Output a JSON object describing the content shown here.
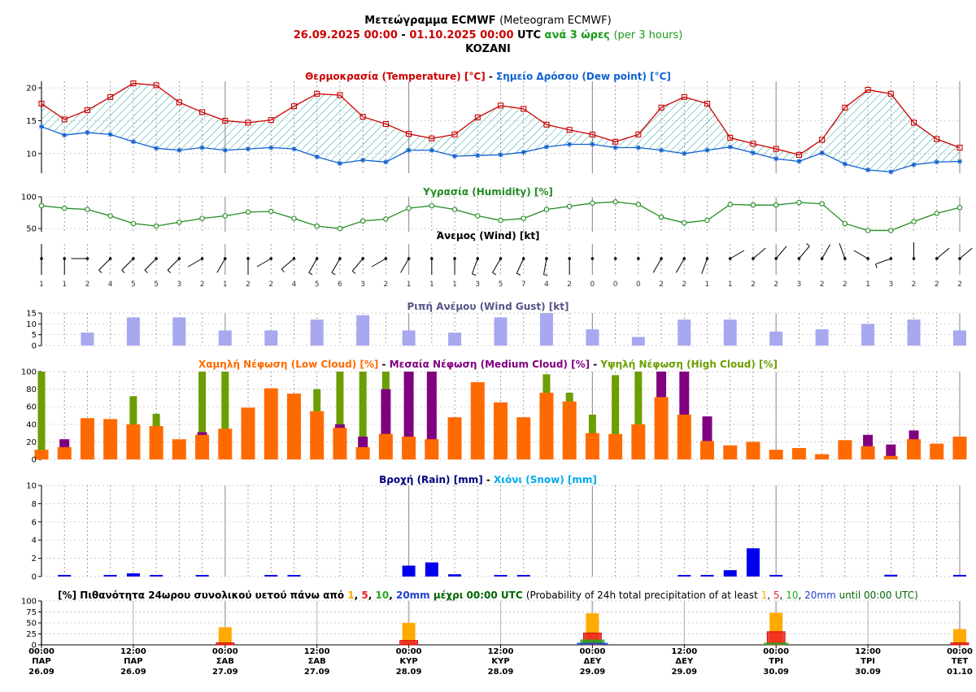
{
  "header": {
    "title_bold": "Μετεώγραμμα ECMWF",
    "title_normal": "(Meteogram ECMWF)",
    "period_start": "26.09.2025 00:00",
    "period_sep": " - ",
    "period_end": "01.10.2025 00:00",
    "period_utc": "UTC",
    "period_step_gr": "ανά 3 ώρες",
    "period_step_en": "(per 3 hours)",
    "location": "KOZANI"
  },
  "colors": {
    "temperature": "#cc0000",
    "dew_point": "#1060d0",
    "fill_hatch": "#20a0a0",
    "humidity": "#228b22",
    "gust": "#a8a8f0",
    "low_cloud": "#ff6a00",
    "medium_cloud": "#800080",
    "high_cloud": "#6b9e00",
    "rain": "#0000ee",
    "snow": "#00aaee",
    "p1": "#ffaa00",
    "p5": "#ee2020",
    "p10": "#22aa22",
    "p20": "#2040cc"
  },
  "chart_data": [
    {
      "type": "line",
      "title_parts": [
        {
          "text": "Θερμοκρασία (Temperature) [°C]",
          "color": "#cc0000"
        },
        {
          "text": " - ",
          "color": "#000000"
        },
        {
          "text": "Σημείο Δρόσου (Dew point) [°C]",
          "color": "#1060d0"
        }
      ],
      "yticks": [
        10,
        15,
        20
      ],
      "ylim": [
        7,
        21
      ],
      "series": [
        {
          "name": "Temperature",
          "values": [
            17.6,
            15.2,
            16.6,
            18.6,
            20.7,
            20.4,
            17.8,
            16.3,
            15.0,
            14.7,
            15.1,
            17.2,
            19.1,
            18.9,
            15.6,
            14.5,
            13.0,
            12.3,
            12.9,
            15.5,
            17.3,
            16.8,
            14.4,
            13.6,
            12.9,
            11.8,
            12.9,
            17.0,
            18.6,
            17.6,
            12.4,
            11.5,
            10.7,
            9.8,
            12.1,
            17.0,
            19.7,
            19.1,
            14.7,
            12.2,
            10.9
          ]
        },
        {
          "name": "Dew point",
          "values": [
            14.1,
            12.8,
            13.2,
            12.9,
            11.8,
            10.8,
            10.5,
            10.9,
            10.5,
            10.7,
            10.9,
            10.7,
            9.5,
            8.5,
            9.0,
            8.7,
            10.5,
            10.5,
            9.6,
            9.7,
            9.8,
            10.2,
            11.0,
            11.4,
            11.4,
            10.9,
            10.9,
            10.5,
            10.0,
            10.5,
            11.0,
            10.1,
            9.2,
            8.8,
            10.1,
            8.4,
            7.5,
            7.2,
            8.3,
            8.7,
            8.8
          ]
        }
      ]
    },
    {
      "type": "line",
      "title_parts": [
        {
          "text": "Υγρασία (Humidity) [%]",
          "color": "#228b22"
        }
      ],
      "yticks": [
        50,
        100
      ],
      "ylim": [
        45,
        100
      ],
      "series": [
        {
          "name": "Humidity",
          "values": [
            86,
            82,
            80,
            70,
            58,
            54,
            60,
            66,
            70,
            76,
            77,
            66,
            54,
            50,
            62,
            65,
            82,
            86,
            80,
            70,
            63,
            66,
            80,
            85,
            90,
            92,
            88,
            68,
            59,
            63,
            88,
            87,
            87,
            91,
            89,
            58,
            47,
            47,
            61,
            74,
            83
          ]
        }
      ]
    },
    {
      "type": "wind",
      "title_parts": [
        {
          "text": "Άνεμος (Wind) [kt]",
          "color": "#000000"
        }
      ],
      "speeds": [
        1,
        1,
        2,
        4,
        5,
        5,
        3,
        2,
        1,
        2,
        2,
        4,
        5,
        6,
        3,
        2,
        1,
        1,
        1,
        3,
        5,
        7,
        4,
        2,
        0,
        0,
        0,
        2,
        2,
        1,
        1,
        2,
        2,
        3,
        2,
        2,
        1,
        3,
        2,
        2,
        2
      ],
      "direction_deg": [
        0,
        0,
        270,
        315,
        315,
        315,
        315,
        300,
        330,
        0,
        300,
        310,
        330,
        330,
        320,
        300,
        330,
        0,
        0,
        340,
        330,
        335,
        350,
        0,
        0,
        0,
        0,
        330,
        330,
        340,
        120,
        130,
        140,
        140,
        150,
        200,
        240,
        290,
        180,
        130,
        130
      ]
    },
    {
      "type": "bar",
      "title_parts": [
        {
          "text": "Ριπή Ανέμου (Wind Gust) [kt]",
          "color": "#555588"
        }
      ],
      "yticks": [
        0,
        5,
        10,
        15
      ],
      "ylim": [
        0,
        15
      ],
      "x_index": [
        2,
        4,
        6,
        8,
        10,
        12,
        14,
        16,
        18,
        20,
        22,
        24,
        26,
        28,
        30,
        32,
        34,
        36,
        38,
        40
      ],
      "values": [
        6,
        13,
        13,
        7,
        7,
        12,
        14,
        7,
        6,
        13,
        15,
        7.5,
        4,
        12,
        12,
        6.5,
        7.5,
        10,
        12,
        7
      ]
    },
    {
      "type": "bar",
      "title_parts": [
        {
          "text": "Χαμηλή Νέφωση (Low Cloud) [%]",
          "color": "#ff6a00"
        },
        {
          "text": " - ",
          "color": "#000000"
        },
        {
          "text": "Μεσαία Νέφωση (Medium Cloud) [%]",
          "color": "#800080"
        },
        {
          "text": " - ",
          "color": "#000000"
        },
        {
          "text": "Υψηλή Νέφωση (High Cloud) [%]",
          "color": "#6b9e00"
        }
      ],
      "yticks": [
        0,
        20,
        40,
        60,
        80,
        100
      ],
      "ylim": [
        0,
        100
      ],
      "series": [
        {
          "name": "Low Cloud",
          "values": [
            11,
            14,
            47,
            46,
            40,
            38,
            23,
            28,
            35,
            59,
            81,
            75,
            55,
            36,
            14,
            29,
            26,
            23,
            48,
            88,
            65,
            48,
            76,
            66,
            30,
            29,
            40,
            71,
            51,
            21,
            16,
            20,
            11,
            13,
            6,
            22,
            15,
            4,
            23,
            18,
            26
          ]
        },
        {
          "name": "Medium Cloud",
          "values": [
            0,
            23,
            0,
            0,
            0,
            0,
            0,
            31,
            0,
            0,
            0,
            0,
            0,
            40,
            26,
            80,
            100,
            100,
            0,
            0,
            0,
            0,
            0,
            0,
            0,
            0,
            0,
            100,
            100,
            49,
            0,
            0,
            0,
            0,
            0,
            0,
            28,
            17,
            33,
            0,
            0
          ]
        },
        {
          "name": "High Cloud",
          "values": [
            100,
            0,
            0,
            0,
            72,
            52,
            0,
            100,
            100,
            0,
            0,
            0,
            80,
            100,
            100,
            100,
            0,
            0,
            0,
            0,
            0,
            0,
            97,
            76,
            51,
            96,
            100,
            0,
            0,
            0,
            0,
            0,
            0,
            0,
            0,
            0,
            0,
            0,
            0,
            0,
            0
          ]
        }
      ]
    },
    {
      "type": "bar",
      "title_parts": [
        {
          "text": "Βροχή (Rain) [mm]",
          "color": "#000080"
        },
        {
          "text": " - ",
          "color": "#000000"
        },
        {
          "text": "Χιόνι (Snow) [mm]",
          "color": "#00aaee"
        }
      ],
      "yticks": [
        0,
        2,
        4,
        6,
        8,
        10
      ],
      "ylim": [
        0,
        10
      ],
      "series": [
        {
          "name": "Rain",
          "values": [
            0,
            0.1,
            0,
            0.1,
            0.35,
            0.1,
            0,
            0.1,
            0,
            0,
            0.1,
            0.1,
            0,
            0,
            0,
            0,
            1.2,
            1.55,
            0.25,
            0,
            0.1,
            0.1,
            0,
            0,
            0,
            0,
            0,
            0,
            0.1,
            0.1,
            0.7,
            3.1,
            0.1,
            0,
            0,
            0,
            0,
            0.2,
            0,
            0,
            0.1
          ]
        },
        {
          "name": "Snow",
          "values": [
            0,
            0,
            0,
            0,
            0,
            0,
            0,
            0,
            0,
            0,
            0,
            0,
            0,
            0,
            0,
            0,
            0,
            0,
            0,
            0,
            0,
            0,
            0,
            0,
            0,
            0,
            0,
            0,
            0,
            0,
            0,
            0,
            0,
            0,
            0,
            0,
            0,
            0,
            0,
            0,
            0
          ]
        }
      ]
    },
    {
      "type": "bar",
      "title_parts": [
        {
          "text": "[%] Πιθανότητα 24ωρου συνολικού υετού πάνω από ",
          "color": "#000000",
          "bold": true
        },
        {
          "text": "1",
          "color": "#ffaa00",
          "bold": true
        },
        {
          "text": ", ",
          "color": "#000000",
          "bold": true
        },
        {
          "text": "5",
          "color": "#ee2020",
          "bold": true
        },
        {
          "text": ", ",
          "color": "#000000",
          "bold": true
        },
        {
          "text": "10",
          "color": "#22aa22",
          "bold": true
        },
        {
          "text": ", ",
          "color": "#000000",
          "bold": true
        },
        {
          "text": "20mm",
          "color": "#2040cc",
          "bold": true
        },
        {
          "text": " μέχρι 00:00 UTC ",
          "color": "#006400",
          "bold": true
        },
        {
          "text": "(Probability of 24h total precipitation of at least ",
          "color": "#000000",
          "bold": false
        },
        {
          "text": "1",
          "color": "#ffaa00",
          "bold": false
        },
        {
          "text": ", ",
          "color": "#000000",
          "bold": false
        },
        {
          "text": "5",
          "color": "#ee2020",
          "bold": false
        },
        {
          "text": ", ",
          "color": "#000000",
          "bold": false
        },
        {
          "text": "10",
          "color": "#22aa22",
          "bold": false
        },
        {
          "text": ", ",
          "color": "#000000",
          "bold": false
        },
        {
          "text": "20mm",
          "color": "#2040cc",
          "bold": false
        },
        {
          "text": " until 00:00 UTC)",
          "color": "#006400",
          "bold": false
        }
      ],
      "yticks": [
        0,
        25,
        50,
        75,
        100
      ],
      "ylim": [
        0,
        100
      ],
      "x_index": [
        8,
        16,
        24,
        32,
        40
      ],
      "series": [
        {
          "name": "1mm",
          "values": [
            40,
            50,
            72,
            73,
            36
          ]
        },
        {
          "name": "5mm",
          "values": [
            2,
            10,
            27,
            30,
            2
          ]
        },
        {
          "name": "10mm",
          "values": [
            0,
            0,
            12,
            5,
            0
          ]
        },
        {
          "name": "20mm",
          "values": [
            0,
            0,
            4,
            0,
            0
          ]
        }
      ]
    }
  ],
  "x_axis": {
    "step_labels": [
      {
        "index": 0,
        "time": "00:00",
        "day": "ΠΑΡ",
        "date": "26.09"
      },
      {
        "index": 4,
        "time": "12:00",
        "day": "ΠΑΡ",
        "date": "26.09"
      },
      {
        "index": 8,
        "time": "00:00",
        "day": "ΣΑΒ",
        "date": "27.09"
      },
      {
        "index": 12,
        "time": "12:00",
        "day": "ΣΑΒ",
        "date": "27.09"
      },
      {
        "index": 16,
        "time": "00:00",
        "day": "ΚΥΡ",
        "date": "28.09"
      },
      {
        "index": 20,
        "time": "12:00",
        "day": "ΚΥΡ",
        "date": "28.09"
      },
      {
        "index": 24,
        "time": "00:00",
        "day": "ΔΕΥ",
        "date": "29.09"
      },
      {
        "index": 28,
        "time": "12:00",
        "day": "ΔΕΥ",
        "date": "29.09"
      },
      {
        "index": 32,
        "time": "00:00",
        "day": "ΤΡΙ",
        "date": "30.09"
      },
      {
        "index": 36,
        "time": "12:00",
        "day": "ΤΡΙ",
        "date": "30.09"
      },
      {
        "index": 40,
        "time": "00:00",
        "day": "ΤΕΤ",
        "date": "01.10"
      }
    ]
  }
}
